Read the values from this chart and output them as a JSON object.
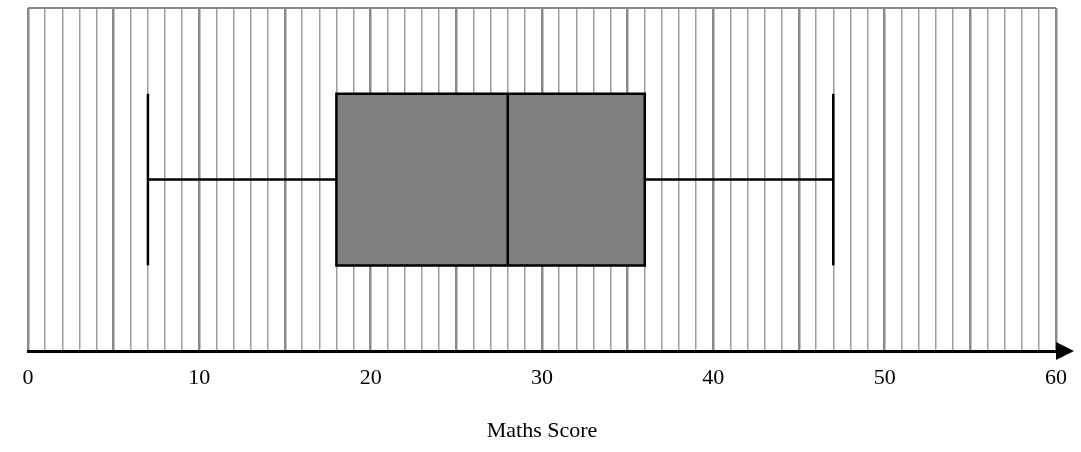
{
  "chart_data": {
    "type": "box",
    "orientation": "horizontal",
    "xlabel": "Maths Score",
    "categories": [
      null
    ],
    "color": "#7f7f7f",
    "boxes": [
      {
        "low": 7,
        "q1": 18,
        "median": 28,
        "q3": 36,
        "high": 47
      }
    ],
    "xlim": [
      0,
      60
    ],
    "xticks": [
      0,
      {
        "value": 1,
        "label": null
      },
      {
        "value": 2,
        "label": null
      },
      {
        "value": 3,
        "label": null
      },
      {
        "value": 4,
        "label": null
      },
      {
        "value": 5,
        "label": null
      },
      {
        "value": 6,
        "label": null
      },
      {
        "value": 7,
        "label": null
      },
      {
        "value": 8,
        "label": null
      },
      {
        "value": 9,
        "label": null
      },
      10,
      {
        "value": 11,
        "label": null
      },
      {
        "value": 12,
        "label": null
      },
      {
        "value": 13,
        "label": null
      },
      {
        "value": 14,
        "label": null
      },
      {
        "value": 15,
        "label": null
      },
      {
        "value": 16,
        "label": null
      },
      {
        "value": 17,
        "label": null
      },
      {
        "value": 18,
        "label": null
      },
      {
        "value": 19,
        "label": null
      },
      20,
      {
        "value": 21,
        "label": null
      },
      {
        "value": 22,
        "label": null
      },
      {
        "value": 23,
        "label": null
      },
      {
        "value": 24,
        "label": null
      },
      {
        "value": 25,
        "label": null
      },
      {
        "value": 26,
        "label": null
      },
      {
        "value": 27,
        "label": null
      },
      {
        "value": 28,
        "label": null
      },
      {
        "value": 29,
        "label": null
      },
      30,
      {
        "value": 31,
        "label": null
      },
      {
        "value": 32,
        "label": null
      },
      {
        "value": 33,
        "label": null
      },
      {
        "value": 34,
        "label": null
      },
      {
        "value": 35,
        "label": null
      },
      {
        "value": 36,
        "label": null
      },
      {
        "value": 37,
        "label": null
      },
      {
        "value": 38,
        "label": null
      },
      {
        "value": 39,
        "label": null
      },
      40,
      {
        "value": 41,
        "label": null
      },
      {
        "value": 42,
        "label": null
      },
      {
        "value": 43,
        "label": null
      },
      {
        "value": 44,
        "label": null
      },
      {
        "value": 45,
        "label": null
      },
      {
        "value": 46,
        "label": null
      },
      {
        "value": 47,
        "label": null
      },
      {
        "value": 48,
        "label": null
      },
      {
        "value": 49,
        "label": null
      },
      50,
      {
        "value": 51,
        "label": null
      },
      {
        "value": 52,
        "label": null
      },
      {
        "value": 53,
        "label": null
      },
      {
        "value": 54,
        "label": null
      },
      {
        "value": 55,
        "label": null
      },
      {
        "value": 56,
        "label": null
      },
      {
        "value": 57,
        "label": null
      },
      {
        "value": 58,
        "label": null
      },
      {
        "value": 59,
        "label": null
      },
      60
    ],
    "grid": "x",
    "tick_labels": "x"
  }
}
